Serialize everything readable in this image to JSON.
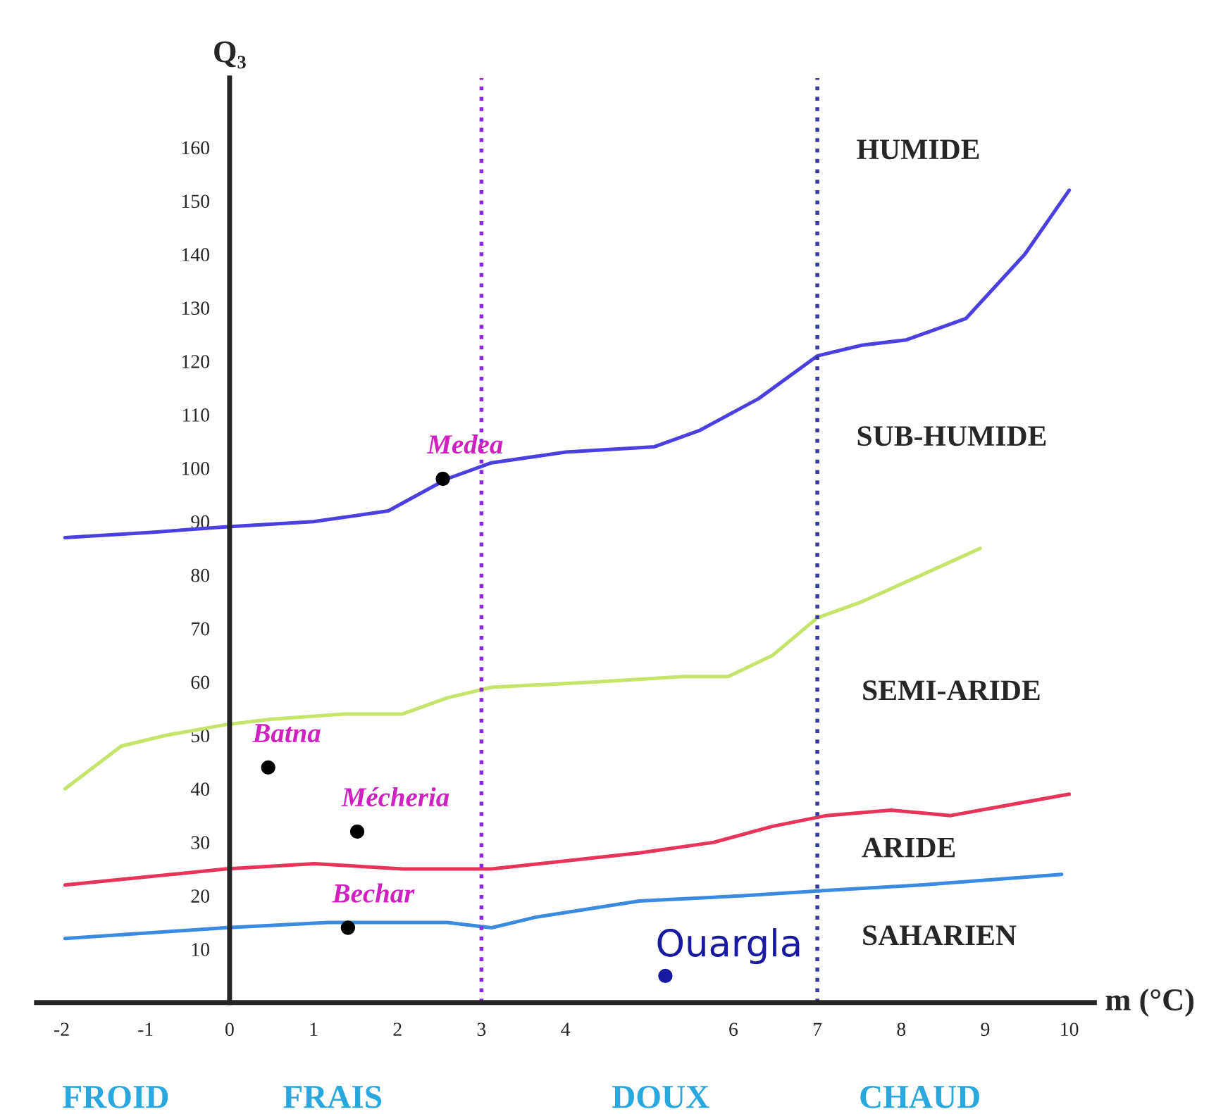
{
  "chart_data": {
    "type": "line",
    "xlabel": "m (°C)",
    "ylabel": "Q₃",
    "xlim": [
      -2.3,
      10.3
    ],
    "ylim": [
      0,
      173
    ],
    "xticks": [
      -2,
      -1,
      0,
      1,
      2,
      3,
      4,
      6,
      7,
      8,
      9,
      10
    ],
    "yticks": [
      10,
      20,
      30,
      40,
      50,
      60,
      70,
      80,
      90,
      100,
      110,
      120,
      130,
      140,
      150,
      160
    ],
    "grid": false,
    "marker": "none",
    "line_style": "solid",
    "series": [
      {
        "color": "#4b3fe0",
        "x": [
          -1.96,
          -0.93,
          -0.05,
          1.0,
          1.89,
          2.59,
          3.12,
          4.0,
          5.06,
          5.59,
          6.3,
          7.0,
          7.53,
          8.06,
          8.77,
          9.47,
          10.0
        ],
        "values": [
          87,
          88,
          89,
          90,
          92,
          98,
          101,
          103,
          104,
          107,
          113,
          121,
          123,
          124,
          128,
          140,
          152
        ]
      },
      {
        "color": "#c4e46a",
        "x": [
          -1.96,
          -1.29,
          -0.76,
          -0.05,
          0.48,
          1.36,
          2.06,
          2.59,
          3.12,
          4.35,
          5.41,
          5.94,
          6.47,
          7.0,
          7.53,
          8.24,
          8.94
        ],
        "values": [
          40,
          48,
          50,
          52,
          53,
          54,
          54,
          57,
          59,
          60,
          61,
          61,
          65,
          72,
          75,
          80,
          85
        ]
      },
      {
        "color": "#e8345a",
        "x": [
          -1.96,
          -0.05,
          1.01,
          2.06,
          3.12,
          4.88,
          5.77,
          6.47,
          7.11,
          7.88,
          8.59,
          9.29,
          10.0
        ],
        "values": [
          22,
          25,
          26,
          25,
          25,
          28,
          30,
          33,
          35,
          36,
          35,
          37,
          39
        ]
      },
      {
        "color": "#3a8ae0",
        "x": [
          -1.96,
          -0.05,
          1.18,
          2.06,
          2.59,
          3.12,
          3.65,
          4.88,
          6.12,
          7.11,
          8.24,
          9.91
        ],
        "values": [
          12,
          14,
          15,
          15,
          15,
          14,
          16,
          19,
          20,
          21,
          22,
          24
        ]
      },
      {
        "type": "scatter",
        "marker": "circle",
        "x": [
          2.54,
          0.46,
          1.52,
          1.41,
          5.19
        ],
        "values": [
          98,
          44,
          32,
          14,
          5
        ],
        "colors": [
          "#000000",
          "#000000",
          "#000000",
          "#000000",
          "#1a1aa0"
        ]
      }
    ],
    "ref_lines": [
      {
        "axis": "x",
        "value": 3,
        "color": "#8a2be2",
        "line_style": "dotted"
      },
      {
        "axis": "x",
        "value": 7,
        "color": "#3a3aa0",
        "line_style": "dotted"
      }
    ],
    "annotations": [
      {
        "text": "Medea",
        "x": 2.54,
        "y": 98
      },
      {
        "text": "Batna",
        "x": 0.46,
        "y": 44
      },
      {
        "text": "Mécheria",
        "x": 1.52,
        "y": 32
      },
      {
        "text": "Bechar",
        "x": 1.41,
        "y": 14
      },
      {
        "text": "Ouargla",
        "x": 5.19,
        "y": 5
      },
      "HUMIDE",
      "SUB-HUMIDE",
      "SEMI-ARIDE",
      "ARIDE",
      "SAHARIEN",
      "FROID",
      "FRAIS",
      "DOUX",
      "CHAUD"
    ]
  }
}
